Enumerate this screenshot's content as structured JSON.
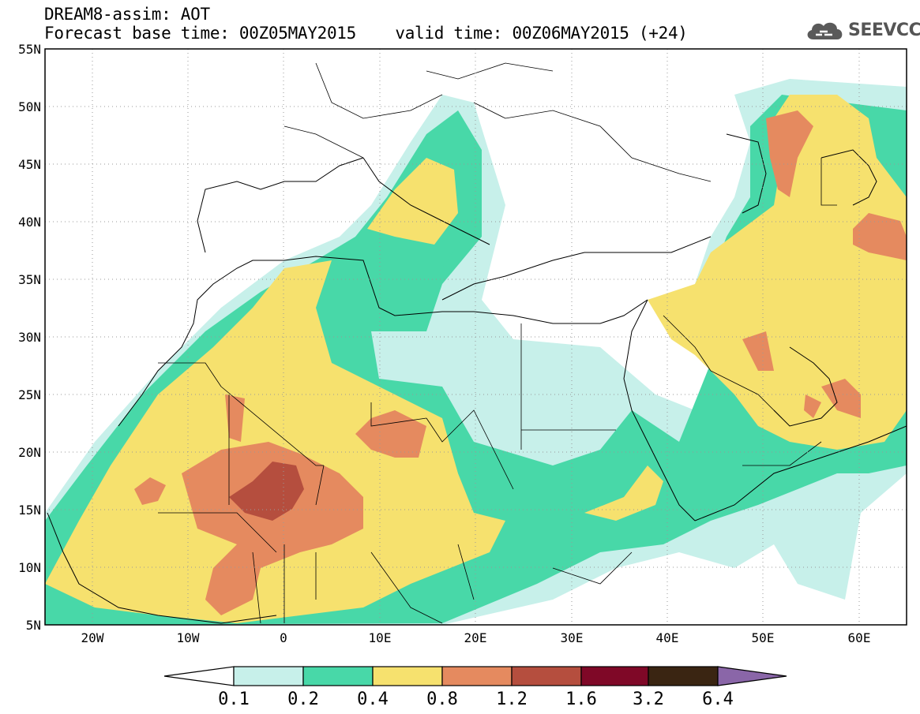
{
  "title": {
    "line1": "DREAM8-assim: AOT",
    "base_time": "Forecast base time: 00Z05MAY2015",
    "valid_time": "valid time: 00Z06MAY2015 (+24)"
  },
  "logo": {
    "text": "SEEVCCC",
    "icon": "cloud-logo-icon"
  },
  "map": {
    "lat_labels": [
      "55N",
      "50N",
      "45N",
      "40N",
      "35N",
      "30N",
      "25N",
      "20N",
      "15N",
      "10N",
      "5N"
    ],
    "lon_labels": [
      "20W",
      "10W",
      "0",
      "10E",
      "20E",
      "30E",
      "40E",
      "50E",
      "60E"
    ]
  },
  "colorbar": {
    "labels": [
      "0.1",
      "0.2",
      "0.4",
      "0.8",
      "1.2",
      "1.6",
      "3.2",
      "6.4"
    ],
    "colors": [
      "#c7f0ea",
      "#48d8a8",
      "#f6e16e",
      "#e58a5f",
      "#b54e3e",
      "#7f0827",
      "#3a2512",
      "#8a66a8"
    ]
  }
}
